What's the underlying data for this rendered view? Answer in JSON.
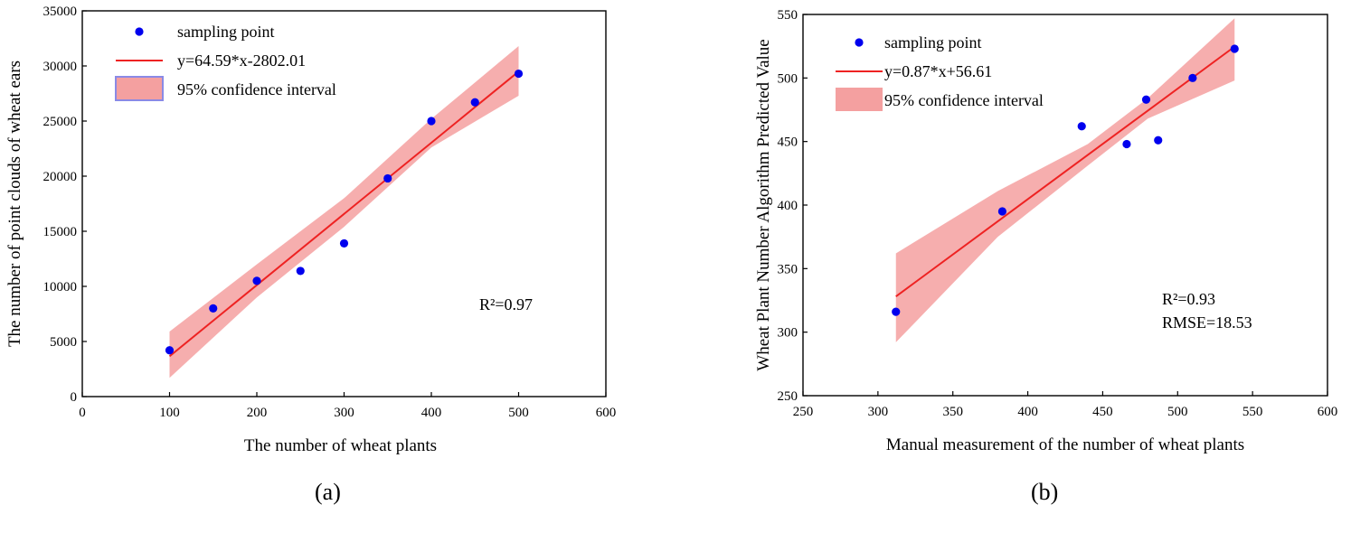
{
  "chart_data": [
    {
      "type": "scatter",
      "panel_label": "(a)",
      "xlabel": "The number of wheat plants",
      "ylabel": "The number of point clouds of wheat ears",
      "xlim": [
        0,
        600
      ],
      "ylim": [
        0,
        35000
      ],
      "xticks": [
        0,
        100,
        200,
        300,
        400,
        500,
        600
      ],
      "yticks": [
        0,
        5000,
        10000,
        15000,
        20000,
        25000,
        30000,
        35000
      ],
      "series": [
        {
          "name": "sampling point",
          "color": "#0000ee",
          "x": [
            100,
            150,
            200,
            250,
            300,
            350,
            400,
            450,
            500
          ],
          "y": [
            4200,
            8000,
            10500,
            11400,
            13900,
            19800,
            25000,
            26700,
            29300
          ]
        }
      ],
      "fit": {
        "label": "y=64.59*x-2802.01",
        "slope": 64.59,
        "intercept": -2802.01,
        "x_range": [
          100,
          500
        ],
        "color": "#ee2222"
      },
      "band": {
        "label": "95% confidence interval",
        "color": "#f4a0a0",
        "x": [
          100,
          200,
          300,
          400,
          500
        ],
        "lower": [
          1700,
          9000,
          15400,
          22600,
          27300
        ],
        "upper": [
          5900,
          12000,
          18000,
          25200,
          31800
        ]
      },
      "annotations": [
        {
          "text": "R²=0.97"
        }
      ]
    },
    {
      "type": "scatter",
      "panel_label": "(b)",
      "xlabel": "Manual measurement of the number of wheat plants",
      "ylabel": "Wheat Plant Number Algorithm Predicted Value",
      "xlim": [
        250,
        600
      ],
      "ylim": [
        250,
        550
      ],
      "xticks": [
        250,
        300,
        350,
        400,
        450,
        500,
        550,
        600
      ],
      "yticks": [
        250,
        300,
        350,
        400,
        450,
        500,
        550
      ],
      "series": [
        {
          "name": "sampling point",
          "color": "#0000ee",
          "x": [
            312,
            383,
            436,
            466,
            479,
            487,
            510,
            538
          ],
          "y": [
            316,
            395,
            462,
            448,
            483,
            451,
            500,
            523
          ]
        }
      ],
      "fit": {
        "label": "y=0.87*x+56.61",
        "slope": 0.87,
        "intercept": 56.61,
        "x_range": [
          312,
          538
        ],
        "color": "#ee2222"
      },
      "band": {
        "label": "95% confidence interval",
        "color": "#f4a0a0",
        "x": [
          312,
          380,
          440,
          480,
          538
        ],
        "lower": [
          292,
          375,
          431,
          468,
          498
        ],
        "upper": [
          362,
          411,
          448,
          484,
          547
        ]
      },
      "annotations": [
        {
          "text": "R²=0.93"
        },
        {
          "text": "RMSE=18.53"
        }
      ]
    }
  ]
}
